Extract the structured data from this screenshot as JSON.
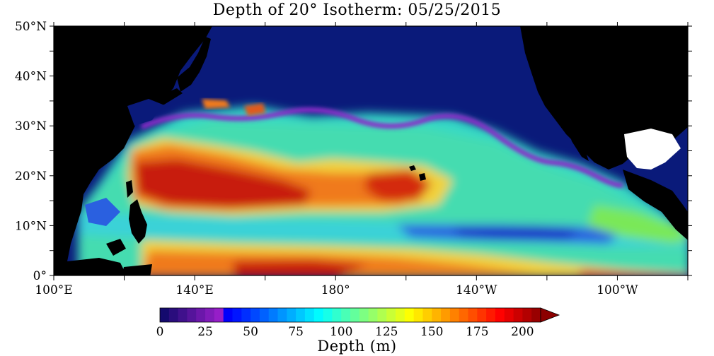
{
  "title": "Depth of 20° Isotherm: 05/25/2015",
  "map": {
    "lon_range": [
      100,
      280
    ],
    "lat_range": [
      0,
      50
    ],
    "lat_ticks": [
      {
        "value": 0,
        "label": "0°"
      },
      {
        "value": 10,
        "label": "10°N"
      },
      {
        "value": 20,
        "label": "20°N"
      },
      {
        "value": 30,
        "label": "30°N"
      },
      {
        "value": 40,
        "label": "40°N"
      },
      {
        "value": 50,
        "label": "50°N"
      }
    ],
    "lon_ticks": [
      {
        "value": 100,
        "label": "100°E"
      },
      {
        "value": 140,
        "label": "140°E"
      },
      {
        "value": 180,
        "label": "180°"
      },
      {
        "value": 220,
        "label": "140°W"
      },
      {
        "value": 260,
        "label": "100°W"
      }
    ],
    "land_color": "#000000",
    "nodata_ocean_color": "#0a1a7a",
    "lake_color": "#ffffff"
  },
  "colorbar": {
    "title": "Depth (m)",
    "min": 0,
    "max": 210,
    "step": 5,
    "labels": [
      "0",
      "25",
      "50",
      "75",
      "100",
      "125",
      "150",
      "175",
      "200"
    ],
    "label_values": [
      0,
      25,
      50,
      75,
      100,
      125,
      150,
      175,
      200
    ],
    "extend": "max"
  }
}
